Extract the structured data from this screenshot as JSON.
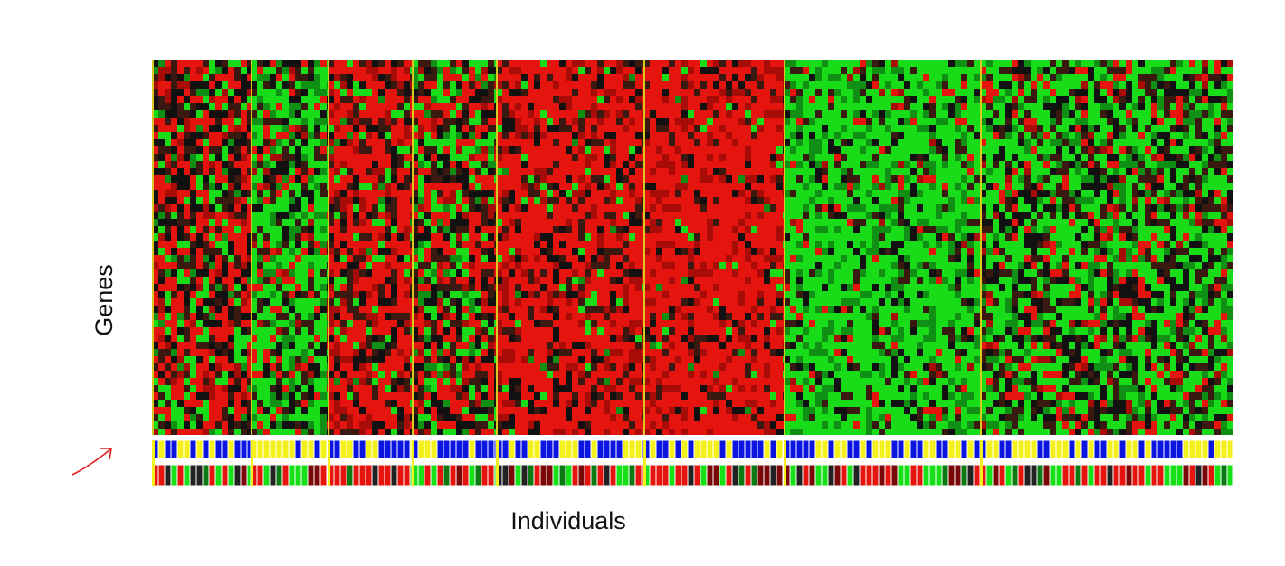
{
  "labels": {
    "y_axis": "Genes",
    "x_axis": "Individuals"
  }
}
